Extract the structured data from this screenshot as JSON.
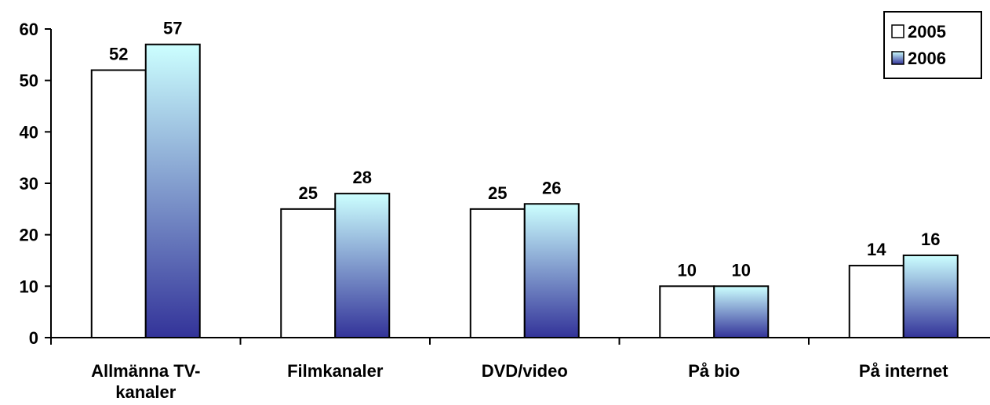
{
  "chart_data": {
    "type": "bar",
    "categories": [
      "Allmänna TV-kanaler",
      "Filmkanaler",
      "DVD/video",
      "På bio",
      "På internet"
    ],
    "category_label_lines": [
      [
        "Allmänna TV-",
        "kanaler"
      ],
      [
        "Filmkanaler"
      ],
      [
        "DVD/video"
      ],
      [
        "På bio"
      ],
      [
        "På internet"
      ]
    ],
    "series": [
      {
        "name": "2005",
        "values": [
          52,
          25,
          25,
          10,
          14
        ],
        "color": "#ffffff"
      },
      {
        "name": "2006",
        "values": [
          57,
          28,
          26,
          10,
          16
        ],
        "gradient": [
          "#ccffff",
          "#333399"
        ]
      }
    ],
    "title": "",
    "xlabel": "",
    "ylabel": "",
    "ylim": [
      0,
      60
    ],
    "yticks": [
      0,
      10,
      20,
      30,
      40,
      50,
      60
    ],
    "grid": false,
    "legend_position": "top-right",
    "data_labels": true
  }
}
